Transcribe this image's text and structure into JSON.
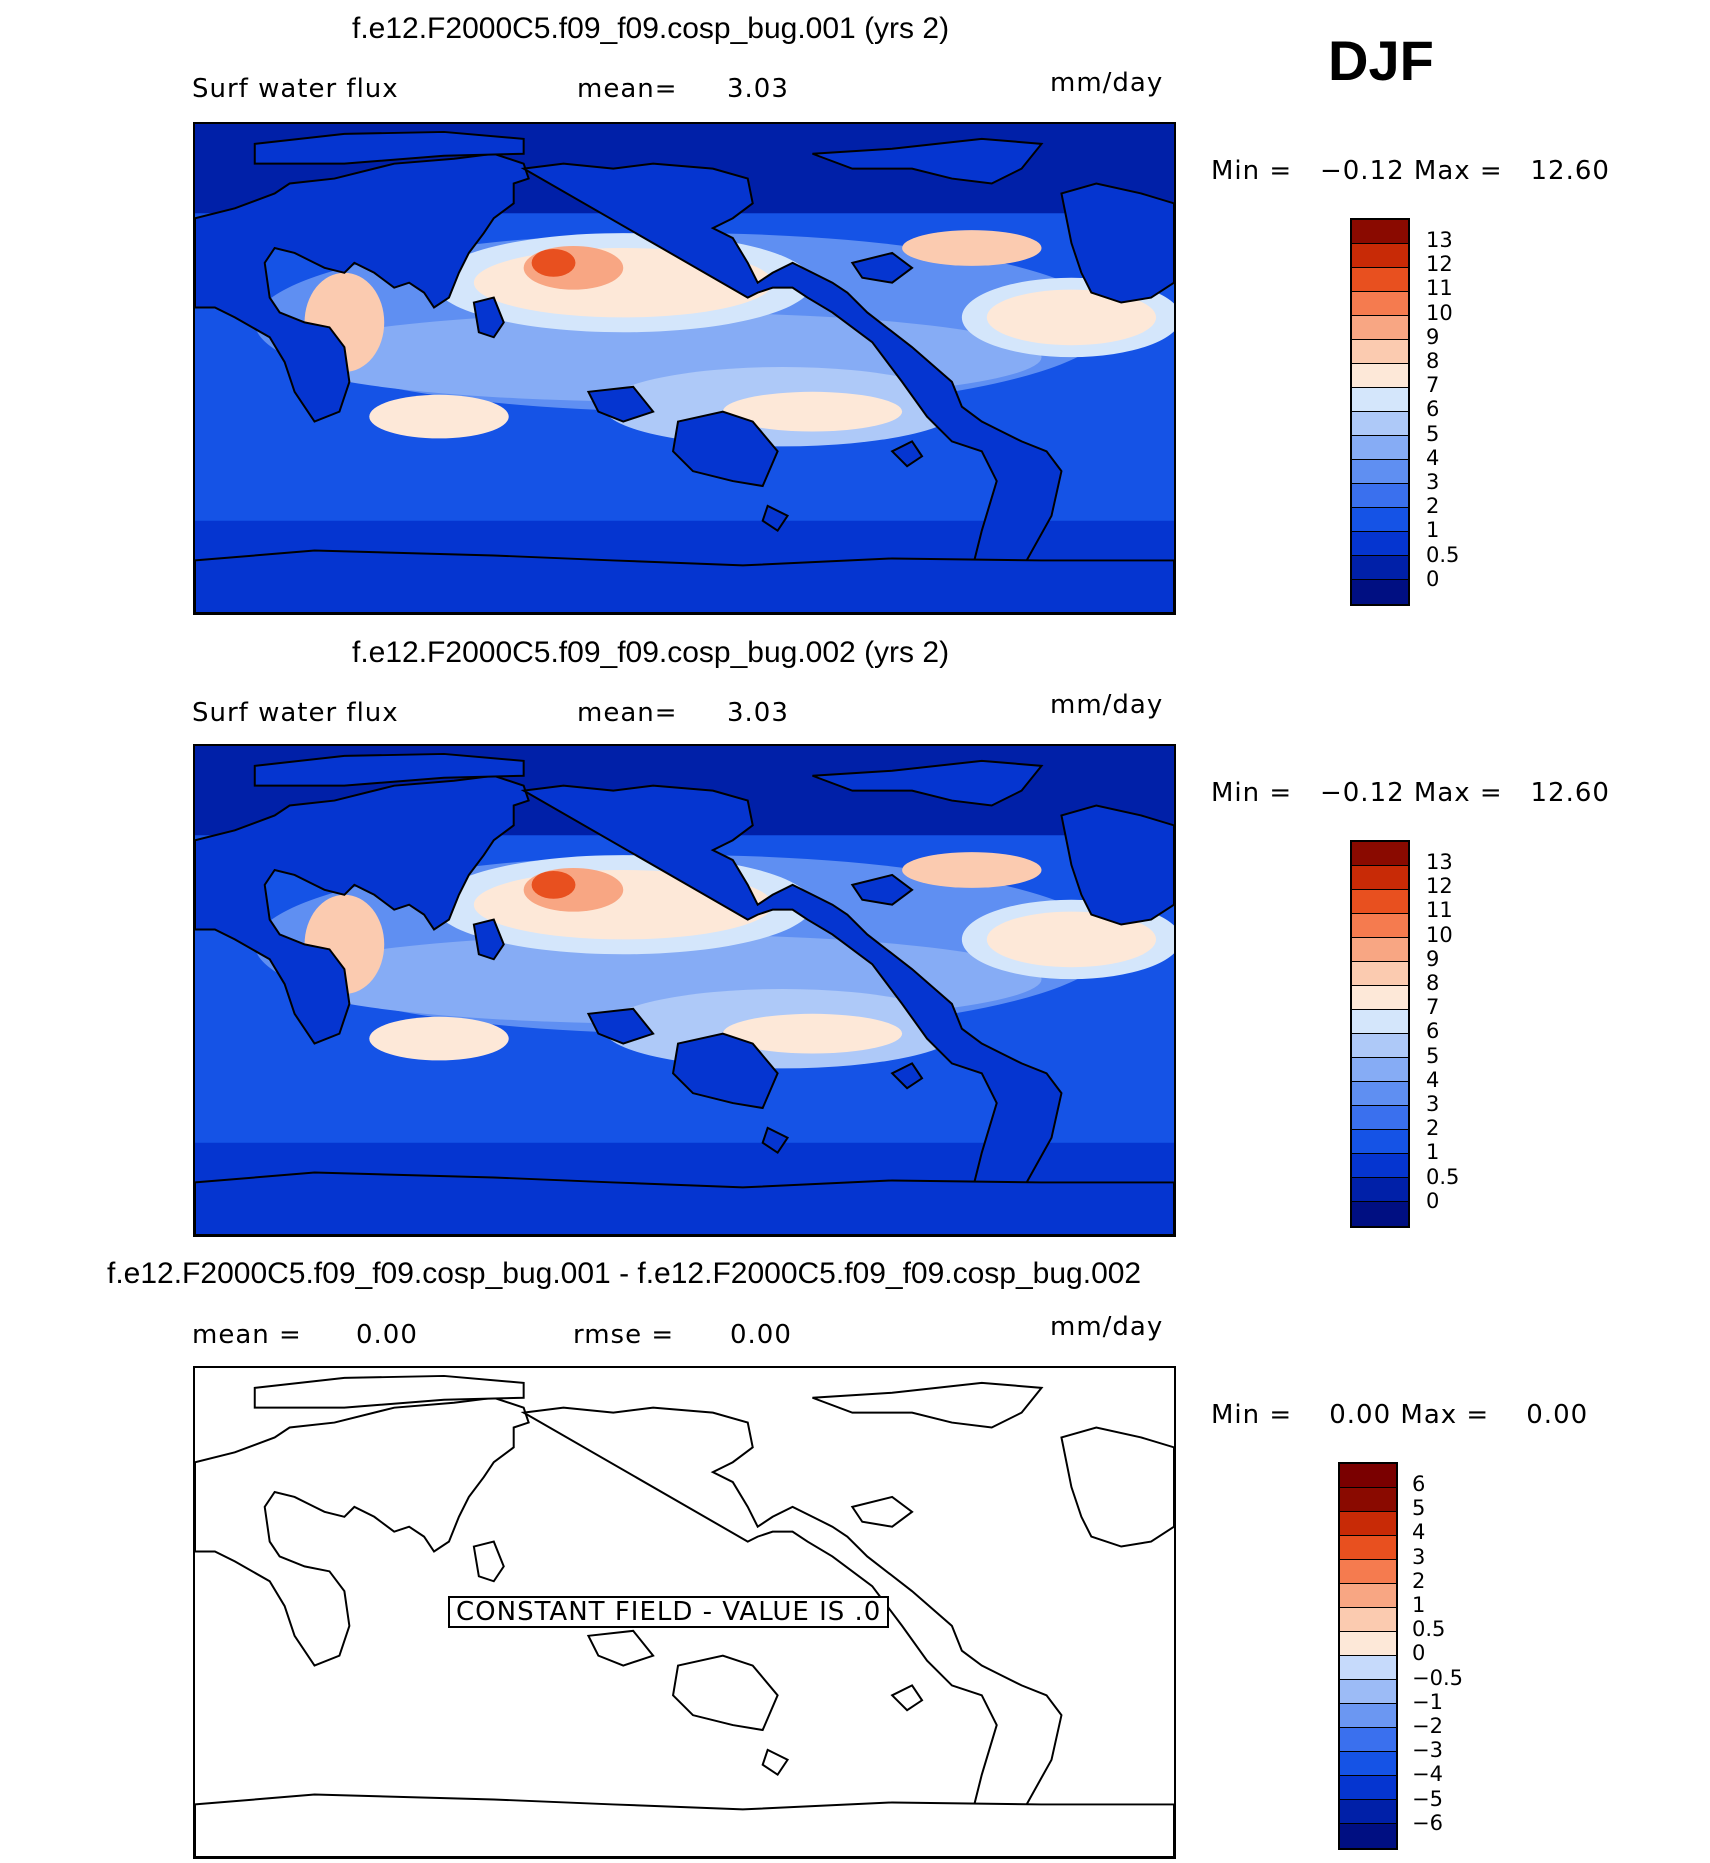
{
  "season": "DJF",
  "panel1": {
    "title": "f.e12.F2000C5.f09_f09.cosp_bug.001 (yrs 2)",
    "variable": "Surf water flux",
    "mean_label": "mean=",
    "mean_value": "3.03",
    "units": "mm/day",
    "minmax": "Min =   −0.12 Max =   12.60",
    "cbar_ticks": [
      "13",
      "12",
      "11",
      "10",
      "9",
      "8",
      "7",
      "6",
      "5",
      "4",
      "3",
      "2",
      "1",
      "0.5",
      "0"
    ]
  },
  "panel2": {
    "title": "f.e12.F2000C5.f09_f09.cosp_bug.002 (yrs 2)",
    "variable": "Surf water flux",
    "mean_label": "mean=",
    "mean_value": "3.03",
    "units": "mm/day",
    "minmax": "Min =   −0.12 Max =   12.60",
    "cbar_ticks": [
      "13",
      "12",
      "11",
      "10",
      "9",
      "8",
      "7",
      "6",
      "5",
      "4",
      "3",
      "2",
      "1",
      "0.5",
      "0"
    ]
  },
  "panel3": {
    "title": "f.e12.F2000C5.f09_f09.cosp_bug.001 - f.e12.F2000C5.f09_f09.cosp_bug.002",
    "mean_label": "mean =",
    "mean_value": "0.00",
    "rmse_label": "rmse =",
    "rmse_value": "0.00",
    "units": "mm/day",
    "minmax": "Min =    0.00 Max =    0.00",
    "constant_field": "CONSTANT FIELD - VALUE IS .0",
    "cbar_ticks": [
      "6",
      "5",
      "4",
      "3",
      "2",
      "1",
      "0.5",
      "0",
      "−0.5",
      "−1",
      "−2",
      "−3",
      "−4",
      "−5",
      "−6"
    ]
  },
  "colors": {
    "field_scale": [
      "#000f82",
      "#0020a8",
      "#0535d0",
      "#1553e6",
      "#3a70ee",
      "#5f8ff2",
      "#86acf5",
      "#aec9f8",
      "#d4e6fb",
      "#fde8d8",
      "#fbcbb0",
      "#f8a683",
      "#f57b4f",
      "#e8501f",
      "#c82a06",
      "#8a0a00"
    ],
    "diff_scale": [
      "#000f82",
      "#0020a8",
      "#0535d0",
      "#1553e6",
      "#3a70ee",
      "#6b97f2",
      "#9cbbf6",
      "#c6dafb",
      "#fde8d8",
      "#fbcbb0",
      "#f8a683",
      "#f57b4f",
      "#e8501f",
      "#c82a06",
      "#8a0a00",
      "#7a0000"
    ]
  }
}
